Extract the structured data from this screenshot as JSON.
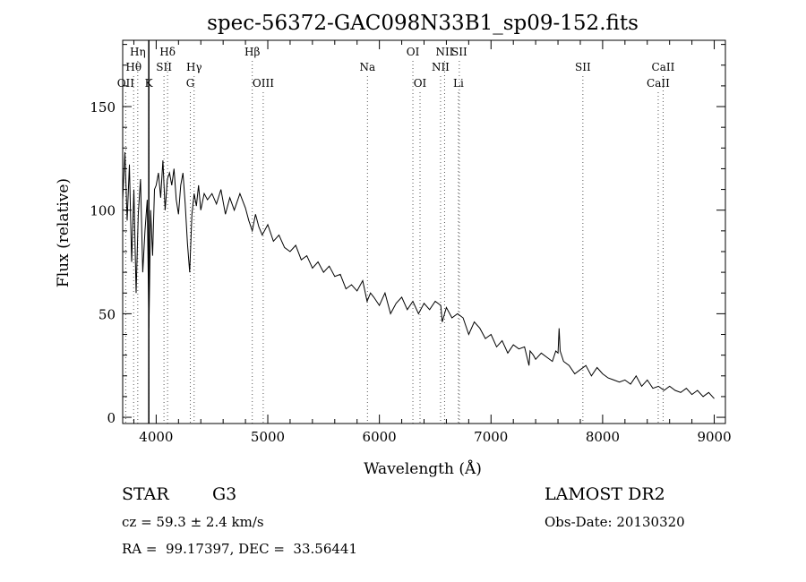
{
  "info": {
    "object_class": "STAR",
    "subclass": "G3",
    "survey": "LAMOST DR2",
    "redshift": "cz = 59.3 ± 2.4 km/s",
    "obs_date": "Obs-Date: 20130320",
    "coords": "RA =  99.17397, DEC =  33.56441"
  },
  "chart_data": {
    "type": "line",
    "title": "spec-56372-GAC098N33B1_sp09-152.fits",
    "xlabel": "Wavelength (Å)",
    "ylabel": "Flux (relative)",
    "xlim": [
      3700,
      9100
    ],
    "ylim": [
      -3,
      182
    ],
    "xticks": [
      4000,
      5000,
      6000,
      7000,
      8000,
      9000
    ],
    "yticks": [
      0,
      50,
      100,
      150
    ],
    "line_color": "#000000",
    "marker_color": "#555555",
    "series": [
      {
        "x": [
          3700,
          3720,
          3740,
          3760,
          3780,
          3800,
          3820,
          3840,
          3860,
          3880,
          3900,
          3920,
          3935,
          3950,
          3968,
          3985,
          4000,
          4020,
          4040,
          4060,
          4080,
          4100,
          4120,
          4140,
          4160,
          4180,
          4200,
          4220,
          4240,
          4260,
          4280,
          4300,
          4320,
          4340,
          4360,
          4380,
          4400,
          4430,
          4460,
          4500,
          4540,
          4580,
          4620,
          4660,
          4700,
          4750,
          4800,
          4830,
          4861,
          4890,
          4920,
          4950,
          5000,
          5050,
          5100,
          5150,
          5200,
          5250,
          5300,
          5350,
          5400,
          5450,
          5500,
          5550,
          5600,
          5650,
          5700,
          5750,
          5800,
          5850,
          5890,
          5920,
          5950,
          6000,
          6050,
          6100,
          6150,
          6200,
          6250,
          6300,
          6350,
          6400,
          6450,
          6500,
          6550,
          6563,
          6600,
          6650,
          6700,
          6750,
          6800,
          6850,
          6900,
          6950,
          7000,
          7050,
          7100,
          7150,
          7200,
          7250,
          7300,
          7340,
          7350,
          7380,
          7400,
          7450,
          7500,
          7550,
          7580,
          7600,
          7610,
          7620,
          7650,
          7700,
          7750,
          7800,
          7850,
          7900,
          7950,
          8000,
          8050,
          8100,
          8150,
          8200,
          8250,
          8300,
          8350,
          8400,
          8450,
          8500,
          8550,
          8600,
          8650,
          8700,
          8750,
          8800,
          8850,
          8900,
          8950,
          9000
        ],
        "values": [
          105,
          128,
          95,
          122,
          75,
          110,
          60,
          98,
          115,
          70,
          90,
          105,
          43,
          100,
          78,
          110,
          112,
          118,
          106,
          124,
          100,
          115,
          118,
          112,
          120,
          105,
          98,
          112,
          118,
          103,
          84,
          70,
          98,
          108,
          102,
          112,
          100,
          108,
          105,
          108,
          103,
          110,
          98,
          106,
          100,
          108,
          101,
          95,
          90,
          98,
          92,
          88,
          93,
          85,
          88,
          82,
          80,
          83,
          76,
          78,
          72,
          75,
          70,
          73,
          68,
          69,
          62,
          64,
          61,
          66,
          56,
          60,
          58,
          54,
          60,
          50,
          55,
          58,
          52,
          56,
          50,
          55,
          52,
          56,
          54,
          46,
          53,
          48,
          50,
          48,
          40,
          46,
          43,
          38,
          40,
          34,
          37,
          31,
          35,
          33,
          34,
          25,
          32,
          30,
          28,
          31,
          29,
          27,
          32,
          31,
          43,
          32,
          27,
          25,
          21,
          23,
          25,
          20,
          24,
          21,
          19,
          18,
          17,
          18,
          16,
          20,
          15,
          18,
          14,
          15,
          13,
          15,
          13,
          12,
          14,
          11,
          13,
          10,
          12,
          9
        ]
      }
    ],
    "line_markers": [
      {
        "label": "Hη",
        "x": 3835,
        "row": 1
      },
      {
        "label": "Hθ",
        "x": 3798,
        "row": 2
      },
      {
        "label": "OII",
        "x": 3727,
        "row": 3
      },
      {
        "label": "K",
        "x": 3934,
        "row": 3
      },
      {
        "label": "Hδ",
        "x": 4102,
        "row": 1
      },
      {
        "label": "SII",
        "x": 4070,
        "row": 2
      },
      {
        "label": "Hγ",
        "x": 4340,
        "row": 2
      },
      {
        "label": "G",
        "x": 4306,
        "row": 3
      },
      {
        "label": "Hβ",
        "x": 4861,
        "row": 1
      },
      {
        "label": "OIII",
        "x": 4959,
        "row": 3
      },
      {
        "label": "Na",
        "x": 5893,
        "row": 2
      },
      {
        "label": "OI",
        "x": 6300,
        "row": 1
      },
      {
        "label": "OI",
        "x": 6364,
        "row": 3
      },
      {
        "label": "NII",
        "x": 6584,
        "row": 1
      },
      {
        "label": "NII",
        "x": 6548,
        "row": 2
      },
      {
        "label": "SII",
        "x": 6716,
        "row": 1
      },
      {
        "label": "Li",
        "x": 6708,
        "row": 3
      },
      {
        "label": "SII",
        "x": 7823,
        "row": 2
      },
      {
        "label": "CaII",
        "x": 8542,
        "row": 2
      },
      {
        "label": "CaII",
        "x": 8498,
        "row": 3
      }
    ],
    "vertical_line_x": 3934
  }
}
